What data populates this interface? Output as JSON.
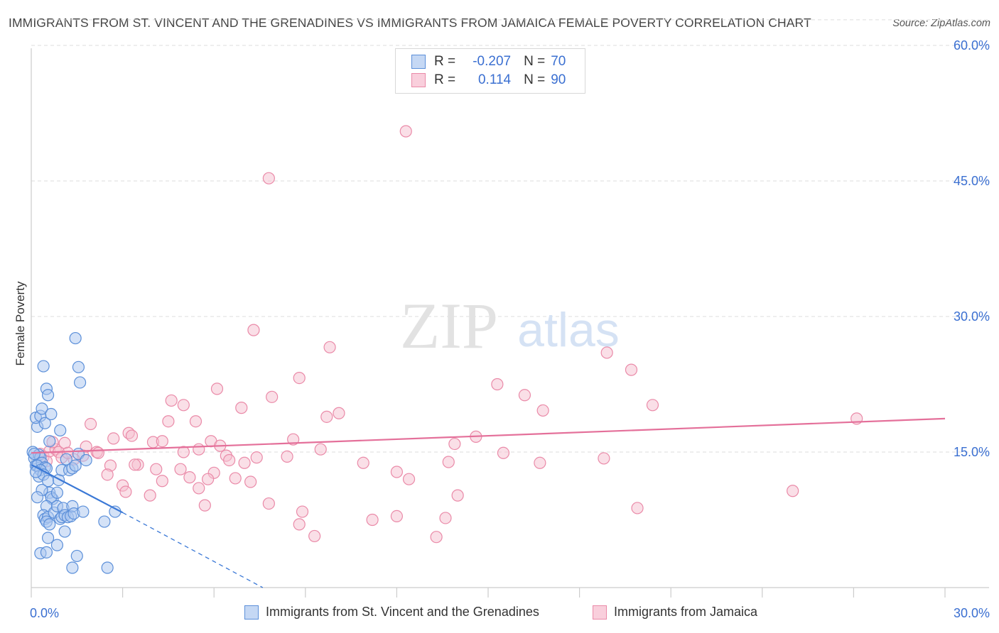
{
  "title": "IMMIGRANTS FROM ST. VINCENT AND THE GRENADINES VS IMMIGRANTS FROM JAMAICA FEMALE POVERTY CORRELATION CHART",
  "source": "Source: ZipAtlas.com",
  "watermark": {
    "zip": "ZIP",
    "atlas": "atlas"
  },
  "colors": {
    "blue_fill": "#a9c6ef",
    "blue_stroke": "#5b8fd9",
    "blue_line": "#3a78d6",
    "pink_fill": "#f6bfd0",
    "pink_stroke": "#ea8aa8",
    "pink_line": "#e4709a",
    "grid": "#dddddd",
    "axis_text": "#3a6fd1"
  },
  "stats": {
    "r_label": "R =",
    "n_label": "N =",
    "series1": {
      "r": "-0.207",
      "n": "70"
    },
    "series2": {
      "r": "0.114",
      "n": "90"
    }
  },
  "chart_data": {
    "type": "scatter",
    "title": "IMMIGRANTS FROM ST. VINCENT AND THE GRENADINES VS IMMIGRANTS FROM JAMAICA FEMALE POVERTY CORRELATION CHART",
    "xlabel": "",
    "ylabel": "Female Poverty",
    "xlim": [
      0,
      30
    ],
    "ylim": [
      0,
      63
    ],
    "x_tick_labels": [
      "0.0%",
      "30.0%"
    ],
    "y_ticks": [
      15,
      30,
      45,
      60
    ],
    "y_tick_labels": [
      "15.0%",
      "30.0%",
      "45.0%",
      "60.0%"
    ],
    "grid": true,
    "series": [
      {
        "name": "Immigrants from St. Vincent and the Grenadines",
        "color": "blue",
        "r": -0.207,
        "n": 70,
        "trend": {
          "x": [
            0,
            3.0
          ],
          "y": [
            13.6,
            8.3
          ],
          "dashed_to": [
            7.6,
            0
          ]
        },
        "points": [
          [
            0.05,
            15.0
          ],
          [
            0.1,
            14.3
          ],
          [
            0.15,
            13.5
          ],
          [
            0.2,
            17.8
          ],
          [
            0.15,
            18.8
          ],
          [
            0.3,
            19.0
          ],
          [
            0.35,
            19.8
          ],
          [
            0.45,
            18.2
          ],
          [
            0.6,
            16.2
          ],
          [
            0.65,
            19.2
          ],
          [
            0.4,
            24.5
          ],
          [
            0.5,
            22.0
          ],
          [
            0.55,
            21.3
          ],
          [
            0.25,
            14.7
          ],
          [
            0.3,
            14.4
          ],
          [
            0.35,
            13.8
          ],
          [
            0.2,
            13.5
          ],
          [
            0.45,
            13.3
          ],
          [
            0.5,
            13.2
          ],
          [
            0.3,
            13.0
          ],
          [
            0.25,
            12.3
          ],
          [
            0.4,
            12.5
          ],
          [
            0.55,
            11.8
          ],
          [
            0.6,
            10.5
          ],
          [
            0.35,
            10.8
          ],
          [
            0.2,
            10.0
          ],
          [
            0.7,
            9.8
          ],
          [
            0.65,
            10.0
          ],
          [
            0.85,
            10.5
          ],
          [
            0.5,
            9.0
          ],
          [
            0.4,
            8.0
          ],
          [
            0.45,
            7.6
          ],
          [
            0.55,
            7.8
          ],
          [
            0.5,
            7.3
          ],
          [
            0.6,
            7.0
          ],
          [
            0.55,
            5.5
          ],
          [
            0.3,
            3.8
          ],
          [
            0.5,
            3.9
          ],
          [
            0.75,
            8.3
          ],
          [
            0.85,
            9.0
          ],
          [
            0.95,
            7.6
          ],
          [
            1.0,
            7.8
          ],
          [
            1.05,
            8.8
          ],
          [
            1.1,
            8.0
          ],
          [
            1.2,
            7.8
          ],
          [
            1.1,
            6.2
          ],
          [
            1.3,
            7.9
          ],
          [
            1.35,
            9.0
          ],
          [
            1.4,
            8.2
          ],
          [
            0.9,
            11.9
          ],
          [
            1.0,
            13.0
          ],
          [
            1.15,
            14.2
          ],
          [
            1.25,
            13.0
          ],
          [
            1.35,
            13.2
          ],
          [
            1.45,
            13.5
          ],
          [
            1.55,
            14.8
          ],
          [
            1.8,
            14.1
          ],
          [
            1.7,
            8.4
          ],
          [
            1.45,
            27.6
          ],
          [
            1.55,
            24.4
          ],
          [
            1.6,
            22.7
          ],
          [
            0.95,
            17.4
          ],
          [
            0.85,
            4.7
          ],
          [
            1.5,
            3.5
          ],
          [
            1.35,
            2.2
          ],
          [
            2.5,
            2.2
          ],
          [
            2.4,
            7.3
          ],
          [
            2.75,
            8.4
          ],
          [
            0.15,
            12.8
          ],
          [
            0.1,
            14.8
          ]
        ]
      },
      {
        "name": "Immigrants from Jamaica",
        "color": "pink",
        "r": 0.114,
        "n": 90,
        "trend": {
          "x": [
            0,
            30
          ],
          "y": [
            14.9,
            18.7
          ]
        },
        "points": [
          [
            12.3,
            50.5
          ],
          [
            7.8,
            45.3
          ],
          [
            7.3,
            28.5
          ],
          [
            9.8,
            26.6
          ],
          [
            18.9,
            26.0
          ],
          [
            19.7,
            24.1
          ],
          [
            8.8,
            23.2
          ],
          [
            6.1,
            22.0
          ],
          [
            15.3,
            22.5
          ],
          [
            16.2,
            21.3
          ],
          [
            7.9,
            21.1
          ],
          [
            20.4,
            20.2
          ],
          [
            4.6,
            20.7
          ],
          [
            5.0,
            20.2
          ],
          [
            6.9,
            19.9
          ],
          [
            10.1,
            19.3
          ],
          [
            9.7,
            18.9
          ],
          [
            16.8,
            19.6
          ],
          [
            27.1,
            18.7
          ],
          [
            4.5,
            18.4
          ],
          [
            5.4,
            18.4
          ],
          [
            1.95,
            18.1
          ],
          [
            3.2,
            17.1
          ],
          [
            3.3,
            16.8
          ],
          [
            2.7,
            16.5
          ],
          [
            4.0,
            16.1
          ],
          [
            4.3,
            16.2
          ],
          [
            5.9,
            16.2
          ],
          [
            6.2,
            15.7
          ],
          [
            8.6,
            16.4
          ],
          [
            13.9,
            15.9
          ],
          [
            14.6,
            16.7
          ],
          [
            9.5,
            15.3
          ],
          [
            1.8,
            15.6
          ],
          [
            5.0,
            15.0
          ],
          [
            5.5,
            15.3
          ],
          [
            2.15,
            15.0
          ],
          [
            2.2,
            14.9
          ],
          [
            1.7,
            14.6
          ],
          [
            1.4,
            14.2
          ],
          [
            6.4,
            14.6
          ],
          [
            6.5,
            14.1
          ],
          [
            7.4,
            14.4
          ],
          [
            7.0,
            13.8
          ],
          [
            8.4,
            14.5
          ],
          [
            10.9,
            13.8
          ],
          [
            13.7,
            13.9
          ],
          [
            15.5,
            14.9
          ],
          [
            16.7,
            13.8
          ],
          [
            18.8,
            14.3
          ],
          [
            2.6,
            13.5
          ],
          [
            3.5,
            13.6
          ],
          [
            3.4,
            13.6
          ],
          [
            2.5,
            12.5
          ],
          [
            4.1,
            13.1
          ],
          [
            4.9,
            13.1
          ],
          [
            5.2,
            12.2
          ],
          [
            6.0,
            12.7
          ],
          [
            6.7,
            12.1
          ],
          [
            7.2,
            11.7
          ],
          [
            4.3,
            11.8
          ],
          [
            5.8,
            12.0
          ],
          [
            5.5,
            11.0
          ],
          [
            3.0,
            11.3
          ],
          [
            3.1,
            10.6
          ],
          [
            3.9,
            10.2
          ],
          [
            12.0,
            12.8
          ],
          [
            12.4,
            12.0
          ],
          [
            14.0,
            10.2
          ],
          [
            7.8,
            9.3
          ],
          [
            5.7,
            9.1
          ],
          [
            8.9,
            8.4
          ],
          [
            11.2,
            7.5
          ],
          [
            12.0,
            7.9
          ],
          [
            8.8,
            7.0
          ],
          [
            13.3,
            5.6
          ],
          [
            25.0,
            10.7
          ],
          [
            19.9,
            8.8
          ],
          [
            9.3,
            5.7
          ],
          [
            13.6,
            7.7
          ],
          [
            0.3,
            14.8
          ],
          [
            0.4,
            14.5
          ],
          [
            0.5,
            14.0
          ],
          [
            0.6,
            15.1
          ],
          [
            0.8,
            15.3
          ],
          [
            0.9,
            15.0
          ],
          [
            1.0,
            14.4
          ],
          [
            1.1,
            16.0
          ],
          [
            0.7,
            16.1
          ],
          [
            1.2,
            14.9
          ]
        ]
      }
    ]
  },
  "legend": {
    "items": [
      {
        "label": "Immigrants from St. Vincent and the Grenadines"
      },
      {
        "label": "Immigrants from Jamaica"
      }
    ]
  }
}
